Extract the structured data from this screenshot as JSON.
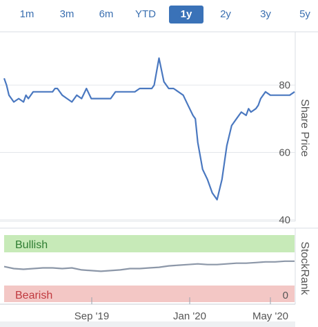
{
  "range_tabs": [
    {
      "label": "1m",
      "active": false
    },
    {
      "label": "3m",
      "active": false
    },
    {
      "label": "6m",
      "active": false
    },
    {
      "label": "YTD",
      "active": false
    },
    {
      "label": "1y",
      "active": true
    },
    {
      "label": "2y",
      "active": false
    },
    {
      "label": "3y",
      "active": false
    },
    {
      "label": "5y",
      "active": false
    }
  ],
  "colors": {
    "price_line": "#4a78c0",
    "stockrank_line": "#8c97a8",
    "bullish_band": "#c7eab8",
    "bearish_band": "#f3c7c5",
    "bullish_text": "#2e7d32",
    "bearish_text": "#c0393e",
    "active_tab": "#3a72b8",
    "tab_text": "#3a6fb0"
  },
  "chart_data": [
    {
      "type": "line",
      "ylabel": "Share Price",
      "ylim": [
        40,
        95
      ],
      "yticks": [
        "80",
        "60",
        "40"
      ],
      "series": [
        {
          "x": [
            0,
            0.5,
            1,
            2,
            3,
            4,
            4.5,
            5,
            6,
            7,
            8,
            8.5,
            9,
            10,
            10.5,
            11,
            12,
            13,
            14,
            15,
            16,
            17,
            18,
            19,
            19.5,
            20,
            21,
            22,
            23,
            24,
            25,
            26,
            27,
            28,
            29,
            30,
            30.5,
            31,
            32,
            33,
            34,
            35,
            36,
            37,
            38,
            39,
            39.5,
            40,
            41,
            42,
            43,
            44,
            45,
            46,
            47,
            48,
            49,
            50,
            50.5,
            51,
            52,
            52.5,
            53,
            53.5,
            54,
            55,
            56,
            57,
            58,
            59,
            60
          ],
          "y": [
            82,
            80,
            77,
            75,
            76,
            75,
            77,
            76,
            78,
            78,
            78,
            78,
            78,
            78,
            79,
            79,
            77,
            76,
            75,
            77,
            76,
            79,
            76,
            76,
            76,
            76,
            76,
            76,
            78,
            78,
            78,
            78,
            78,
            79,
            79,
            79,
            79,
            80,
            88,
            81,
            79,
            79,
            78,
            77,
            74,
            71,
            70,
            63,
            55,
            52,
            48,
            46,
            52,
            62,
            68,
            70,
            72,
            71,
            73,
            72,
            73,
            74,
            76,
            77,
            78,
            77,
            77,
            77,
            77,
            77,
            78
          ]
        }
      ]
    },
    {
      "type": "line",
      "ylabel": "StockRank",
      "ylim": [
        0,
        100
      ],
      "yticks": [
        "0"
      ],
      "bands": [
        "Bullish",
        "Bearish"
      ],
      "xticks": [
        "Sep '19",
        "Jan '20",
        "May '20"
      ],
      "series": [
        {
          "x": [
            0,
            2,
            4,
            6,
            8,
            10,
            12,
            14,
            16,
            18,
            20,
            22,
            24,
            26,
            28,
            30,
            32,
            34,
            36,
            38,
            40,
            42,
            44,
            46,
            48,
            50,
            52,
            54,
            56,
            58,
            60
          ],
          "y": [
            53,
            50,
            49,
            50,
            51,
            51,
            50,
            51,
            48,
            47,
            46,
            47,
            48,
            50,
            50,
            51,
            52,
            54,
            55,
            56,
            57,
            56,
            56,
            57,
            58,
            58,
            59,
            60,
            60,
            61,
            61
          ]
        }
      ]
    }
  ]
}
